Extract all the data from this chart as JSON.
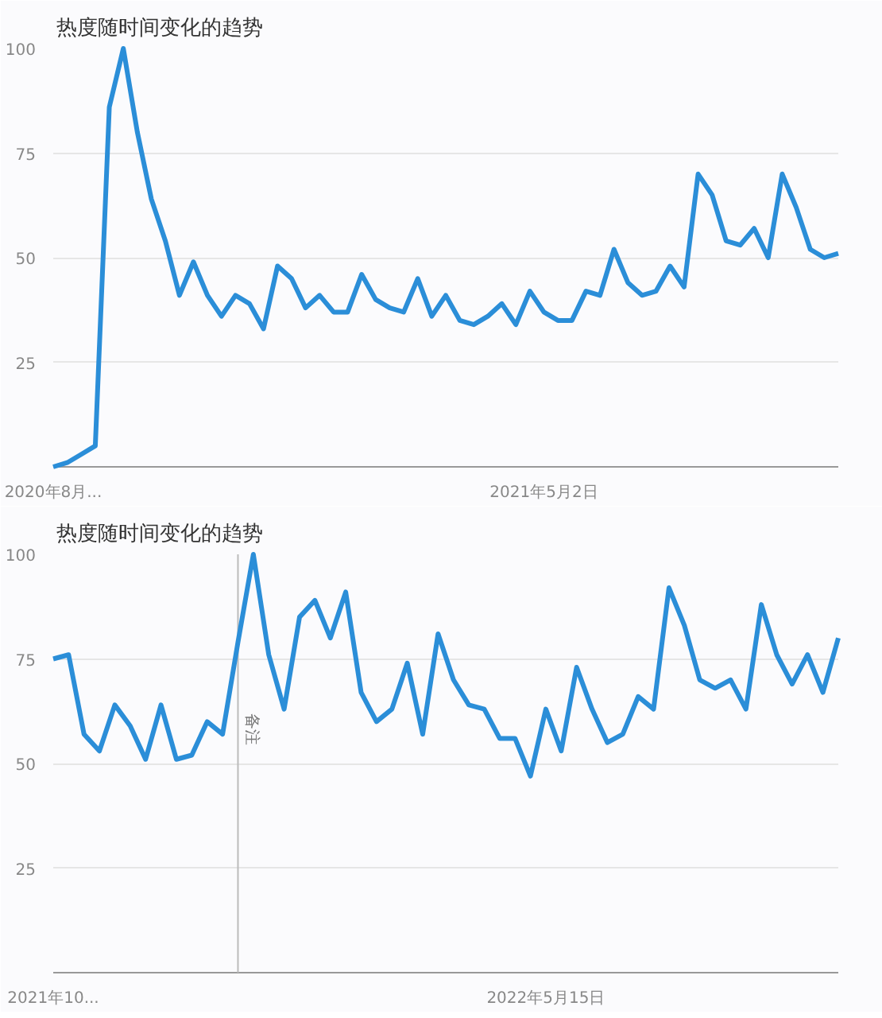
{
  "chart_data": [
    {
      "type": "line",
      "title": "热度随时间变化的趋势",
      "x": [
        "2020-08-30",
        "2020-09-06",
        "2020-09-13",
        "2020-09-20",
        "2020-09-27",
        "2020-10-04",
        "2020-10-11",
        "2020-10-18",
        "2020-10-25",
        "2020-11-01",
        "2020-11-08",
        "2020-11-15",
        "2020-11-22",
        "2020-11-29",
        "2020-12-06",
        "2020-12-13",
        "2020-12-20",
        "2020-12-27",
        "2021-01-03",
        "2021-01-10",
        "2021-01-17",
        "2021-01-24",
        "2021-01-31",
        "2021-02-07",
        "2021-02-14",
        "2021-02-21",
        "2021-02-28",
        "2021-03-07",
        "2021-03-14",
        "2021-03-21",
        "2021-03-28",
        "2021-04-04",
        "2021-04-11",
        "2021-04-18",
        "2021-04-25",
        "2021-05-02",
        "2021-05-09",
        "2021-05-16",
        "2021-05-23",
        "2021-05-30",
        "2021-06-06",
        "2021-06-13",
        "2021-06-20",
        "2021-06-27",
        "2021-07-04",
        "2021-07-11",
        "2021-07-18",
        "2021-07-25",
        "2021-08-01",
        "2021-08-08",
        "2021-08-15",
        "2021-08-22",
        "2021-08-29",
        "2021-09-05",
        "2021-09-12",
        "2021-09-19",
        "2021-09-26"
      ],
      "series": [
        {
          "color": "#2b8ed8",
          "values": [
            0,
            1,
            3,
            5,
            86,
            100,
            80,
            64,
            54,
            41,
            49,
            41,
            36,
            41,
            39,
            33,
            48,
            45,
            38,
            41,
            37,
            37,
            46,
            40,
            38,
            37,
            45,
            36,
            41,
            35,
            34,
            36,
            39,
            34,
            42,
            37,
            35,
            35,
            42,
            41,
            52,
            44,
            41,
            42,
            48,
            43,
            70,
            65,
            54,
            53,
            57,
            50,
            70,
            62,
            52,
            50,
            51
          ]
        }
      ],
      "xlim": [
        "2020-08-30",
        "2021-09-26"
      ],
      "xticks": [
        {
          "value": "2020-08-30",
          "label": "2020年8月..."
        },
        {
          "value": "2021-05-02",
          "label": "2021年5月2日"
        }
      ],
      "ylim": [
        0,
        100
      ],
      "yticks": [
        25,
        50,
        75,
        100
      ],
      "grid": "y",
      "line_style": "solid",
      "marker": "none"
    },
    {
      "type": "line",
      "title": "热度随时间变化的趋势",
      "x": [
        "2021-10-03",
        "2021-10-10",
        "2021-10-17",
        "2021-10-24",
        "2021-10-31",
        "2021-11-07",
        "2021-11-14",
        "2021-11-21",
        "2021-11-28",
        "2021-12-05",
        "2021-12-12",
        "2021-12-19",
        "2021-12-26",
        "2022-01-02",
        "2022-01-09",
        "2022-01-16",
        "2022-01-23",
        "2022-01-30",
        "2022-02-06",
        "2022-02-13",
        "2022-02-20",
        "2022-02-27",
        "2022-03-06",
        "2022-03-13",
        "2022-03-20",
        "2022-03-27",
        "2022-04-03",
        "2022-04-10",
        "2022-04-17",
        "2022-04-24",
        "2022-05-01",
        "2022-05-08",
        "2022-05-15",
        "2022-05-22",
        "2022-05-29",
        "2022-06-05",
        "2022-06-12",
        "2022-06-19",
        "2022-06-26",
        "2022-07-03",
        "2022-07-10",
        "2022-07-17",
        "2022-07-24",
        "2022-07-31",
        "2022-08-07",
        "2022-08-14",
        "2022-08-21",
        "2022-08-28",
        "2022-09-04",
        "2022-09-11",
        "2022-09-18",
        "2022-09-25"
      ],
      "series": [
        {
          "color": "#2b8ed8",
          "values": [
            75,
            76,
            57,
            53,
            64,
            59,
            51,
            64,
            51,
            52,
            60,
            57,
            79,
            100,
            76,
            63,
            85,
            89,
            80,
            91,
            67,
            60,
            63,
            74,
            57,
            81,
            70,
            64,
            63,
            56,
            56,
            47,
            63,
            53,
            73,
            63,
            55,
            57,
            66,
            63,
            92,
            83,
            70,
            68,
            70,
            63,
            88,
            76,
            69,
            76,
            67,
            80
          ]
        }
      ],
      "xlim": [
        "2021-10-03",
        "2022-09-25"
      ],
      "xticks": [
        {
          "value": "2021-10-03",
          "label": "2021年10..."
        },
        {
          "value": "2022-05-15",
          "label": "2022年5月15日"
        }
      ],
      "ylim": [
        0,
        100
      ],
      "yticks": [
        25,
        50,
        75,
        100
      ],
      "grid": "y",
      "line_style": "solid",
      "marker": "none",
      "ref_lines": [
        {
          "axis": "x",
          "value": "2021-12-26",
          "label": "备注",
          "color": "#bbbbbb"
        }
      ]
    }
  ]
}
